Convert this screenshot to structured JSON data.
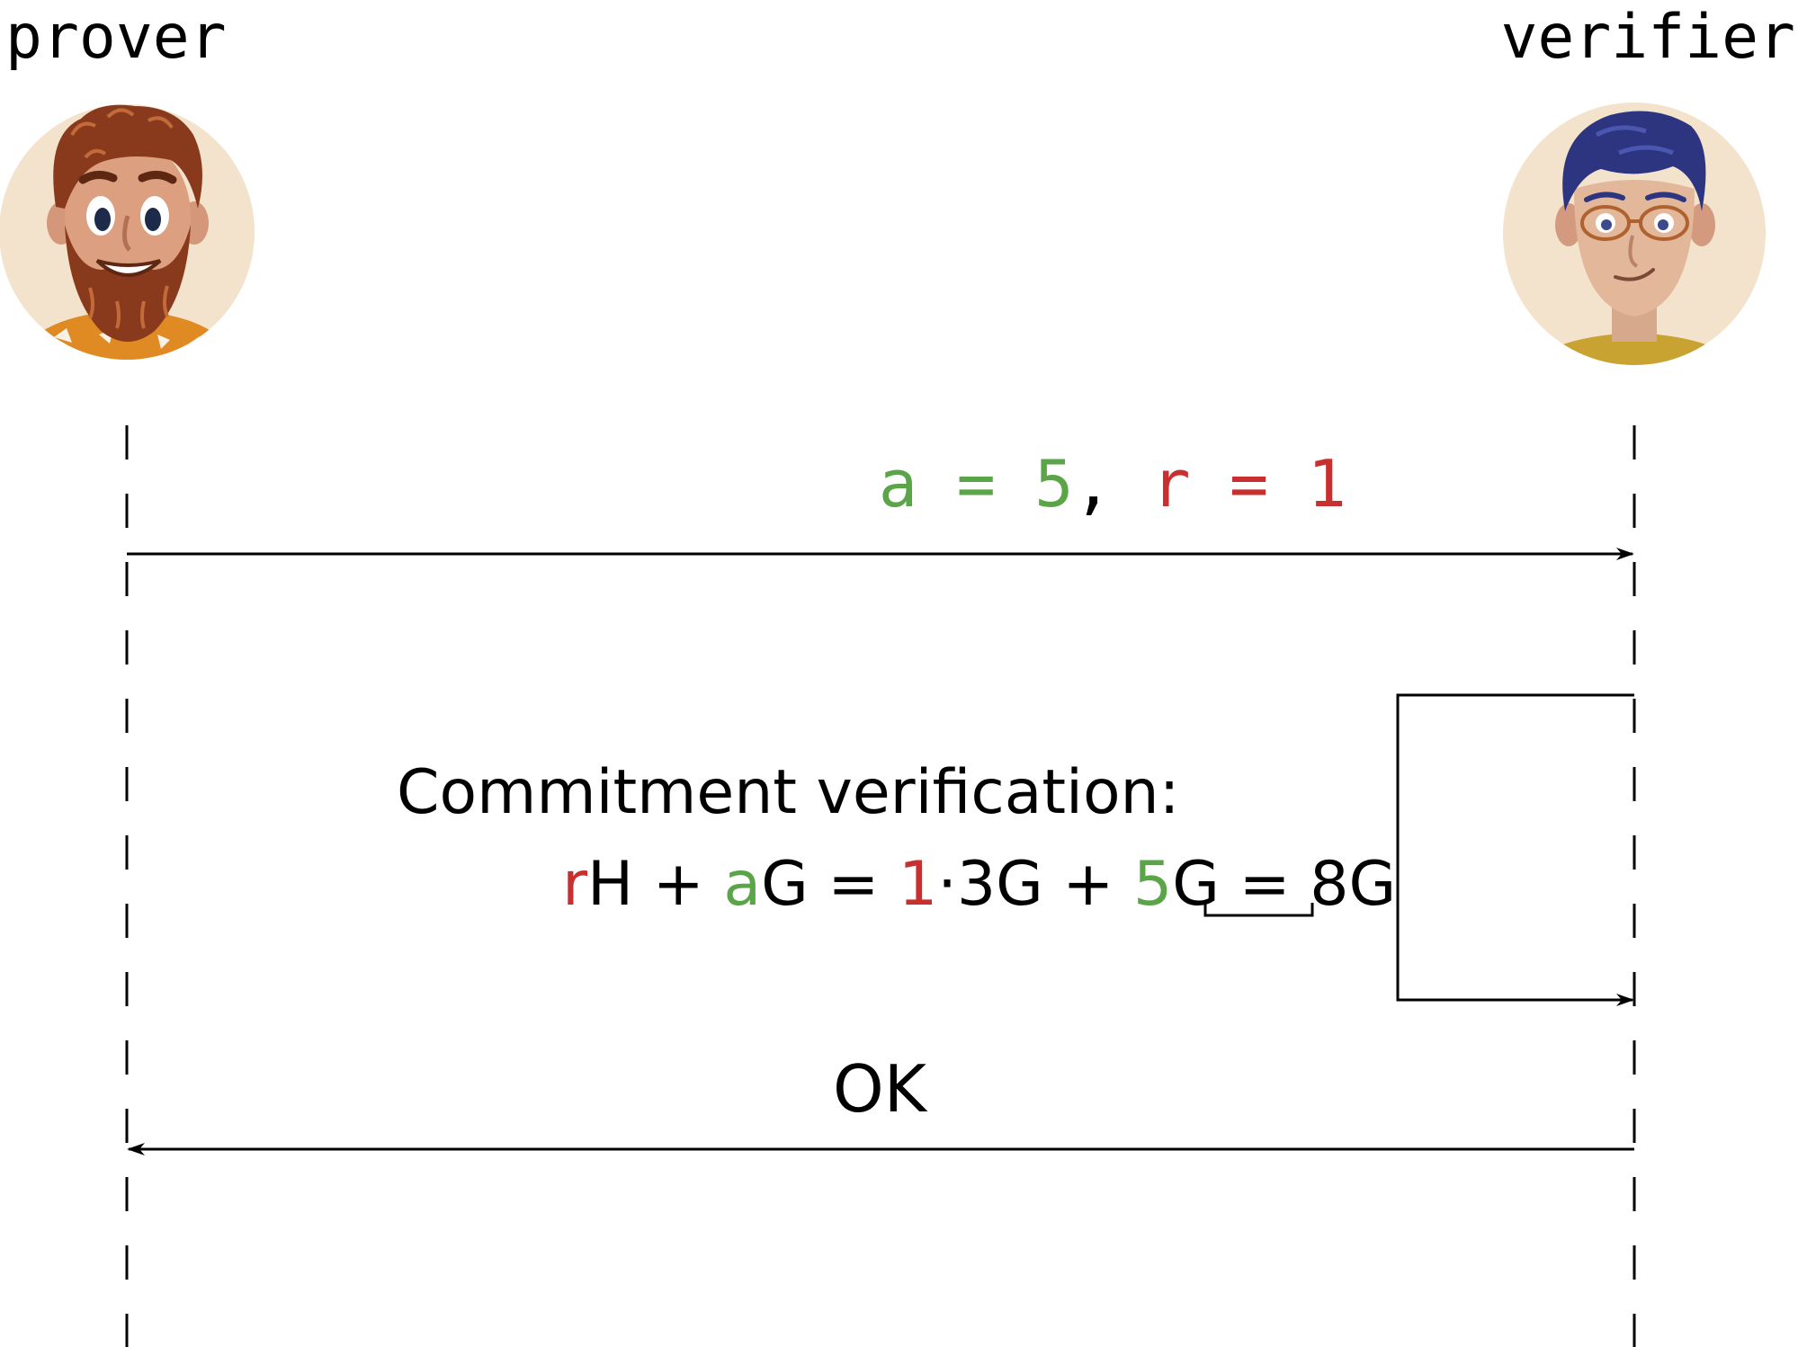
{
  "participants": {
    "prover": {
      "label": "prover"
    },
    "verifier": {
      "label": "verifier"
    }
  },
  "messages": {
    "send_values": {
      "a_name": "a",
      "a_eq": " = ",
      "a_value": "5",
      "separator": ", ",
      "r_name": "r",
      "r_eq": " = ",
      "r_value": "1"
    },
    "verification": {
      "title": "Commitment verification:",
      "t_r": "r",
      "t_H_plus": "H + ",
      "t_a": "a",
      "t_G_eq": "G = ",
      "t_1": "1",
      "t_mid": "·3G + ",
      "t_5": "5",
      "t_G_eq2": "G = ",
      "t_result": "8G"
    },
    "reply": {
      "label": "OK"
    }
  },
  "colors": {
    "a": "#5aa547",
    "r": "#c8302f",
    "line": "#000000"
  },
  "icons": {
    "prover": "bearded-man-avatar-icon",
    "verifier": "man-with-glasses-avatar-icon"
  }
}
